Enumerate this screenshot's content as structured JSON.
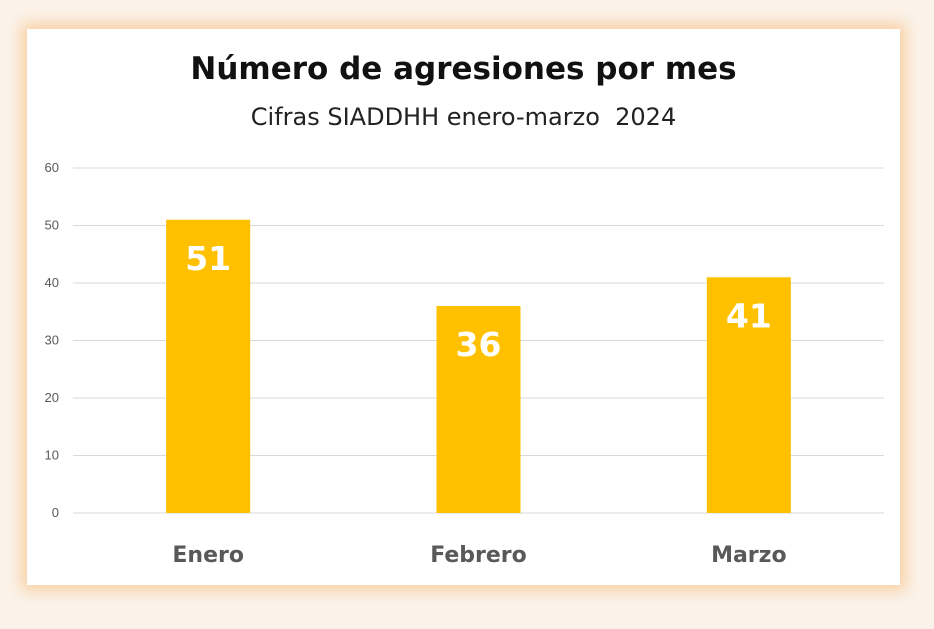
{
  "chart_data": {
    "type": "bar",
    "title": "Número de agresiones por mes",
    "subtitle": "Cifras SIADDHH enero-marzo  2024",
    "categories": [
      "Enero",
      "Febrero",
      "Marzo"
    ],
    "values": [
      51,
      36,
      41
    ],
    "data_labels": [
      "51",
      "36",
      "41"
    ],
    "ylim": [
      0,
      60
    ],
    "yticks": [
      "0",
      "10",
      "20",
      "30",
      "40",
      "50",
      "60"
    ],
    "grid": true,
    "legend": "none",
    "bar_color": "#FFC000",
    "grid_color": "#D9D9D9"
  }
}
